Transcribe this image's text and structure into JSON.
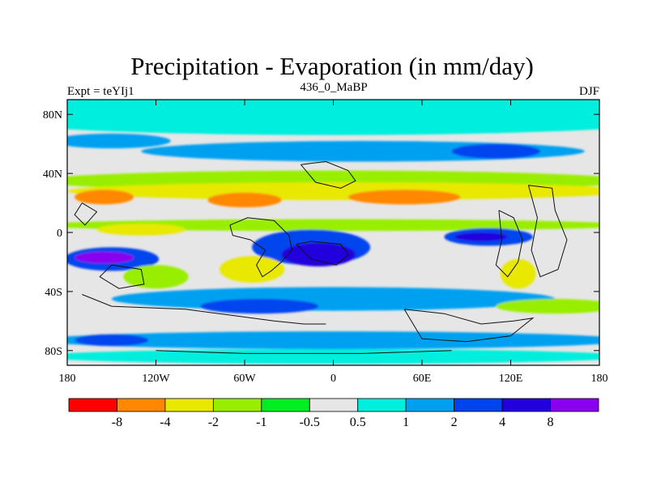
{
  "chart_data": {
    "type": "heatmap",
    "title": "Precipitation - Evaporation (in mm/day)",
    "left_label": "Expt = teYIj1",
    "center_label": "436_0_MaBP",
    "right_label": "DJF",
    "xlabel": "",
    "ylabel": "",
    "xlim": [
      -180,
      180
    ],
    "ylim": [
      -90,
      90
    ],
    "x_ticks": [
      {
        "value": -180,
        "label": "180"
      },
      {
        "value": -120,
        "label": "120W"
      },
      {
        "value": -60,
        "label": "60W"
      },
      {
        "value": 0,
        "label": "0"
      },
      {
        "value": 60,
        "label": "60E"
      },
      {
        "value": 120,
        "label": "120E"
      },
      {
        "value": 180,
        "label": "180"
      }
    ],
    "y_ticks": [
      {
        "value": 80,
        "label": "80N"
      },
      {
        "value": 40,
        "label": "40N"
      },
      {
        "value": 0,
        "label": "0"
      },
      {
        "value": -40,
        "label": "40S"
      },
      {
        "value": -80,
        "label": "80S"
      }
    ],
    "colorbar": {
      "colors": [
        "#ff0000",
        "#ff8800",
        "#e8e800",
        "#99ee00",
        "#00ee22",
        "#e6e6e6",
        "#00eedd",
        "#00a0f0",
        "#0044ee",
        "#2200dd",
        "#8800ee"
      ],
      "levels": [
        {
          "value": -8,
          "label": "-8"
        },
        {
          "value": -4,
          "label": "-4"
        },
        {
          "value": -2,
          "label": "-2"
        },
        {
          "value": -1,
          "label": "-1"
        },
        {
          "value": -0.5,
          "label": "-0.5"
        },
        {
          "value": 0.5,
          "label": "0.5"
        },
        {
          "value": 1,
          "label": "1"
        },
        {
          "value": 2,
          "label": "2"
        },
        {
          "value": 4,
          "label": "4"
        },
        {
          "value": 8,
          "label": "8"
        }
      ]
    },
    "features": [
      {
        "value": 0.7,
        "lon": 0,
        "lat": 80,
        "rlon": 260,
        "rlat": 14
      },
      {
        "value": 1.5,
        "lon": 20,
        "lat": 55,
        "rlon": 150,
        "rlat": 7
      },
      {
        "value": 1.5,
        "lon": -150,
        "lat": 62,
        "rlon": 40,
        "rlat": 5
      },
      {
        "value": 2.5,
        "lon": 110,
        "lat": 55,
        "rlon": 30,
        "rlat": 5
      },
      {
        "value": -1.5,
        "lon": 0,
        "lat": 35,
        "rlon": 200,
        "rlat": 7
      },
      {
        "value": -2.5,
        "lon": 10,
        "lat": 28,
        "rlon": 190,
        "rlat": 6
      },
      {
        "value": -5,
        "lon": -155,
        "lat": 24,
        "rlon": 20,
        "rlat": 5
      },
      {
        "value": -5,
        "lon": -60,
        "lat": 22,
        "rlon": 25,
        "rlat": 5
      },
      {
        "value": -5,
        "lon": 48,
        "lat": 24,
        "rlon": 38,
        "rlat": 5
      },
      {
        "value": -1.5,
        "lon": 0,
        "lat": 5,
        "rlon": 200,
        "rlat": 4
      },
      {
        "value": -2.5,
        "lon": -130,
        "lat": 2,
        "rlon": 30,
        "rlat": 4
      },
      {
        "value": 3,
        "lon": -15,
        "lat": -10,
        "rlon": 40,
        "rlat": 12
      },
      {
        "value": 5,
        "lon": -10,
        "lat": -15,
        "rlon": 25,
        "rlat": 8
      },
      {
        "value": 3,
        "lon": 105,
        "lat": -3,
        "rlon": 30,
        "rlat": 6
      },
      {
        "value": 5,
        "lon": 100,
        "lat": -3,
        "rlon": 18,
        "rlat": 3
      },
      {
        "value": 3,
        "lon": -150,
        "lat": -18,
        "rlon": 32,
        "rlat": 8
      },
      {
        "value": 8,
        "lon": -155,
        "lat": -17,
        "rlon": 20,
        "rlat": 4
      },
      {
        "value": -2.5,
        "lon": -55,
        "lat": -25,
        "rlon": 22,
        "rlat": 9
      },
      {
        "value": -2.5,
        "lon": 125,
        "lat": -28,
        "rlon": 12,
        "rlat": 10
      },
      {
        "value": -1.5,
        "lon": -120,
        "lat": -30,
        "rlon": 22,
        "rlat": 8
      },
      {
        "value": 1.5,
        "lon": 0,
        "lat": -45,
        "rlon": 150,
        "rlat": 8
      },
      {
        "value": 2.5,
        "lon": -50,
        "lat": -50,
        "rlon": 40,
        "rlat": 5
      },
      {
        "value": -1.5,
        "lon": 150,
        "lat": -50,
        "rlon": 40,
        "rlat": 5
      },
      {
        "value": 1.5,
        "lon": 0,
        "lat": -73,
        "rlon": 200,
        "rlat": 6
      },
      {
        "value": 2.5,
        "lon": -150,
        "lat": -73,
        "rlon": 25,
        "rlat": 4
      },
      {
        "value": 0.7,
        "lon": 0,
        "lat": -84,
        "rlon": 200,
        "rlat": 5
      }
    ],
    "coastlines": [
      [
        [
          -170,
          20
        ],
        [
          -175,
          12
        ],
        [
          -168,
          5
        ],
        [
          -160,
          14
        ],
        [
          -170,
          20
        ]
      ],
      [
        [
          -70,
          5
        ],
        [
          -58,
          10
        ],
        [
          -40,
          8
        ],
        [
          -30,
          -2
        ],
        [
          -28,
          -12
        ],
        [
          -35,
          -20
        ],
        [
          -42,
          -26
        ],
        [
          -48,
          -30
        ],
        [
          -52,
          -22
        ],
        [
          -46,
          -12
        ],
        [
          -56,
          -5
        ],
        [
          -68,
          -2
        ],
        [
          -70,
          5
        ]
      ],
      [
        [
          -25,
          -8
        ],
        [
          -15,
          -6
        ],
        [
          5,
          -8
        ],
        [
          10,
          -15
        ],
        [
          2,
          -22
        ],
        [
          -15,
          -18
        ],
        [
          -25,
          -8
        ]
      ],
      [
        [
          -22,
          46
        ],
        [
          -5,
          48
        ],
        [
          10,
          42
        ],
        [
          15,
          35
        ],
        [
          5,
          30
        ],
        [
          -12,
          34
        ],
        [
          -22,
          46
        ]
      ],
      [
        [
          -150,
          -22
        ],
        [
          -130,
          -25
        ],
        [
          -128,
          -35
        ],
        [
          -145,
          -38
        ],
        [
          -158,
          -30
        ],
        [
          -150,
          -22
        ]
      ],
      [
        [
          112,
          15
        ],
        [
          122,
          10
        ],
        [
          128,
          -5
        ],
        [
          125,
          -20
        ],
        [
          118,
          -30
        ],
        [
          110,
          -22
        ],
        [
          114,
          -5
        ],
        [
          112,
          15
        ]
      ],
      [
        [
          132,
          32
        ],
        [
          148,
          30
        ],
        [
          150,
          15
        ],
        [
          158,
          -5
        ],
        [
          152,
          -25
        ],
        [
          140,
          -30
        ],
        [
          134,
          -12
        ],
        [
          138,
          10
        ],
        [
          132,
          32
        ]
      ],
      [
        [
          -170,
          -42
        ],
        [
          -150,
          -50
        ],
        [
          -100,
          -52
        ],
        [
          -70,
          -56
        ],
        [
          -40,
          -60
        ],
        [
          -20,
          -62
        ],
        [
          -5,
          -62
        ]
      ],
      [
        [
          -120,
          -80
        ],
        [
          -60,
          -82
        ],
        [
          20,
          -82
        ],
        [
          80,
          -80
        ]
      ],
      [
        [
          48,
          -52
        ],
        [
          75,
          -55
        ],
        [
          100,
          -62
        ],
        [
          122,
          -60
        ],
        [
          135,
          -58
        ],
        [
          120,
          -70
        ],
        [
          90,
          -74
        ],
        [
          60,
          -72
        ],
        [
          48,
          -52
        ]
      ]
    ]
  }
}
